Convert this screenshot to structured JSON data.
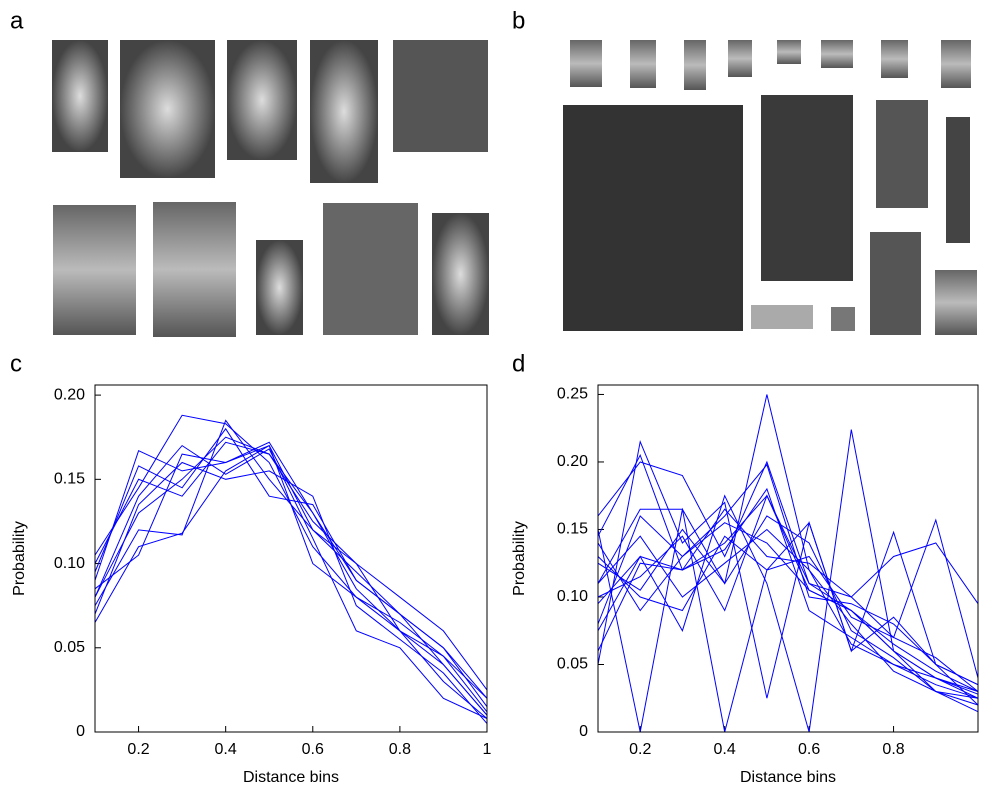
{
  "panels": [
    {
      "label": "a"
    },
    {
      "label": "b"
    }
  ],
  "chart_data": [
    {
      "type": "line",
      "panel_label": "c",
      "y_label": "Probability",
      "x_label": "Distance bins",
      "x": [
        0.1,
        0.2,
        0.3,
        0.4,
        0.5,
        0.6,
        0.7,
        0.8,
        0.9,
        1.0
      ],
      "xlim": [
        0.1,
        1
      ],
      "ylim": [
        0,
        0.206
      ],
      "xticks": [
        0.2,
        0.4,
        0.6,
        0.8,
        1
      ],
      "yticks": [
        0,
        0.05,
        {
          "value": 0.1,
          "label": "0.10"
        },
        0.15,
        {
          "value": 0.2,
          "label": "0.20"
        }
      ],
      "series": [
        {
          "color": "#0000ff",
          "values": [
            0.08,
            0.13,
            0.15,
            0.175,
            0.165,
            0.13,
            0.09,
            0.07,
            0.04,
            0.01
          ]
        },
        {
          "color": "#0000ff",
          "values": [
            0.105,
            0.145,
            0.188,
            0.183,
            0.16,
            0.11,
            0.08,
            0.06,
            0.045,
            0.02
          ]
        },
        {
          "color": "#0000ff",
          "values": [
            0.065,
            0.11,
            0.118,
            0.155,
            0.17,
            0.12,
            0.095,
            0.07,
            0.05,
            0.015
          ]
        },
        {
          "color": "#0000ff",
          "values": [
            0.09,
            0.167,
            0.155,
            0.16,
            0.172,
            0.13,
            0.085,
            0.06,
            0.03,
            0.008
          ]
        },
        {
          "color": "#0000ff",
          "values": [
            0.075,
            0.12,
            0.117,
            0.185,
            0.15,
            0.12,
            0.1,
            0.08,
            0.06,
            0.025
          ]
        },
        {
          "color": "#0000ff",
          "values": [
            0.1,
            0.15,
            0.14,
            0.172,
            0.165,
            0.125,
            0.1,
            0.06,
            0.04,
            0.01
          ]
        },
        {
          "color": "#0000ff",
          "values": [
            0.085,
            0.105,
            0.165,
            0.16,
            0.17,
            0.1,
            0.08,
            0.065,
            0.045,
            0.012
          ]
        },
        {
          "color": "#0000ff",
          "values": [
            0.07,
            0.135,
            0.16,
            0.15,
            0.155,
            0.14,
            0.075,
            0.055,
            0.035,
            0.005
          ]
        },
        {
          "color": "#0000ff",
          "values": [
            0.095,
            0.158,
            0.145,
            0.18,
            0.14,
            0.135,
            0.09,
            0.07,
            0.05,
            0.02
          ]
        },
        {
          "color": "#0000ff",
          "values": [
            0.08,
            0.14,
            0.17,
            0.153,
            0.168,
            0.115,
            0.06,
            0.05,
            0.02,
            0.008
          ]
        }
      ]
    },
    {
      "type": "line",
      "panel_label": "d",
      "y_label": "Probability",
      "x_label": "Distance bins",
      "x": [
        0.1,
        0.2,
        0.3,
        0.4,
        0.5,
        0.6,
        0.7,
        0.8,
        0.9,
        1.0
      ],
      "xlim": [
        0.1,
        1
      ],
      "ylim": [
        0,
        0.257
      ],
      "xticks": [
        0.2,
        0.4,
        0.6,
        0.8
      ],
      "yticks": [
        0,
        0.05,
        {
          "value": 0.1,
          "label": "0.10"
        },
        0.15,
        {
          "value": 0.2,
          "label": "0.20"
        },
        0.25
      ],
      "series": [
        {
          "color": "#0000ff",
          "values": [
            0.16,
            0.2,
            0.19,
            0.13,
            0.2,
            0.11,
            0.09,
            0.06,
            0.03,
            0.015
          ]
        },
        {
          "color": "#0000ff",
          "values": [
            0.05,
            0.215,
            0.14,
            0.17,
            0.025,
            0.155,
            0.06,
            0.148,
            0.05,
            0.02
          ]
        },
        {
          "color": "#0000ff",
          "values": [
            0.15,
            0,
            0.165,
            0.11,
            0.25,
            0.12,
            0.065,
            0.05,
            0.035,
            0.025
          ]
        },
        {
          "color": "#0000ff",
          "values": [
            0.075,
            0.13,
            0.075,
            0.175,
            0.11,
            0,
            0.224,
            0.06,
            0.04,
            0.03
          ]
        },
        {
          "color": "#0000ff",
          "values": [
            0.11,
            0.165,
            0.165,
            0,
            0.12,
            0.13,
            0.085,
            0.07,
            0.157,
            0.04
          ]
        },
        {
          "color": "#0000ff",
          "values": [
            0.14,
            0.09,
            0.13,
            0.16,
            0.198,
            0.1,
            0.095,
            0.08,
            0.05,
            0.035
          ]
        },
        {
          "color": "#0000ff",
          "values": [
            0.095,
            0.13,
            0.12,
            0.14,
            0.175,
            0.105,
            0.09,
            0.065,
            0.045,
            0.03
          ]
        },
        {
          "color": "#0000ff",
          "values": [
            0.125,
            0.105,
            0.15,
            0.11,
            0.16,
            0.14,
            0.075,
            0.055,
            0.03,
            0.02
          ]
        },
        {
          "color": "#0000ff",
          "values": [
            0.06,
            0.125,
            0.12,
            0.165,
            0.13,
            0.125,
            0.1,
            0.13,
            0.14,
            0.095
          ]
        },
        {
          "color": "#0000ff",
          "values": [
            0.145,
            0.205,
            0.12,
            0.135,
            0.18,
            0.09,
            0.07,
            0.05,
            0.04,
            0.025
          ]
        },
        {
          "color": "#0000ff",
          "values": [
            0.11,
            0.145,
            0.1,
            0.125,
            0.15,
            0.12,
            0.08,
            0.045,
            0.03,
            0.025
          ]
        },
        {
          "color": "#0000ff",
          "values": [
            0.1,
            0.115,
            0.145,
            0.09,
            0.175,
            0.11,
            0.1,
            0.07,
            0.055,
            0.03
          ]
        },
        {
          "color": "#0000ff",
          "values": [
            0.08,
            0.16,
            0.13,
            0.155,
            0.14,
            0.105,
            0.09,
            0.06,
            0.04,
            0.028
          ]
        },
        {
          "color": "#0000ff",
          "values": [
            0.13,
            0.1,
            0.09,
            0.145,
            0.12,
            0.155,
            0.06,
            0.085,
            0.05,
            0.035
          ]
        }
      ]
    }
  ]
}
